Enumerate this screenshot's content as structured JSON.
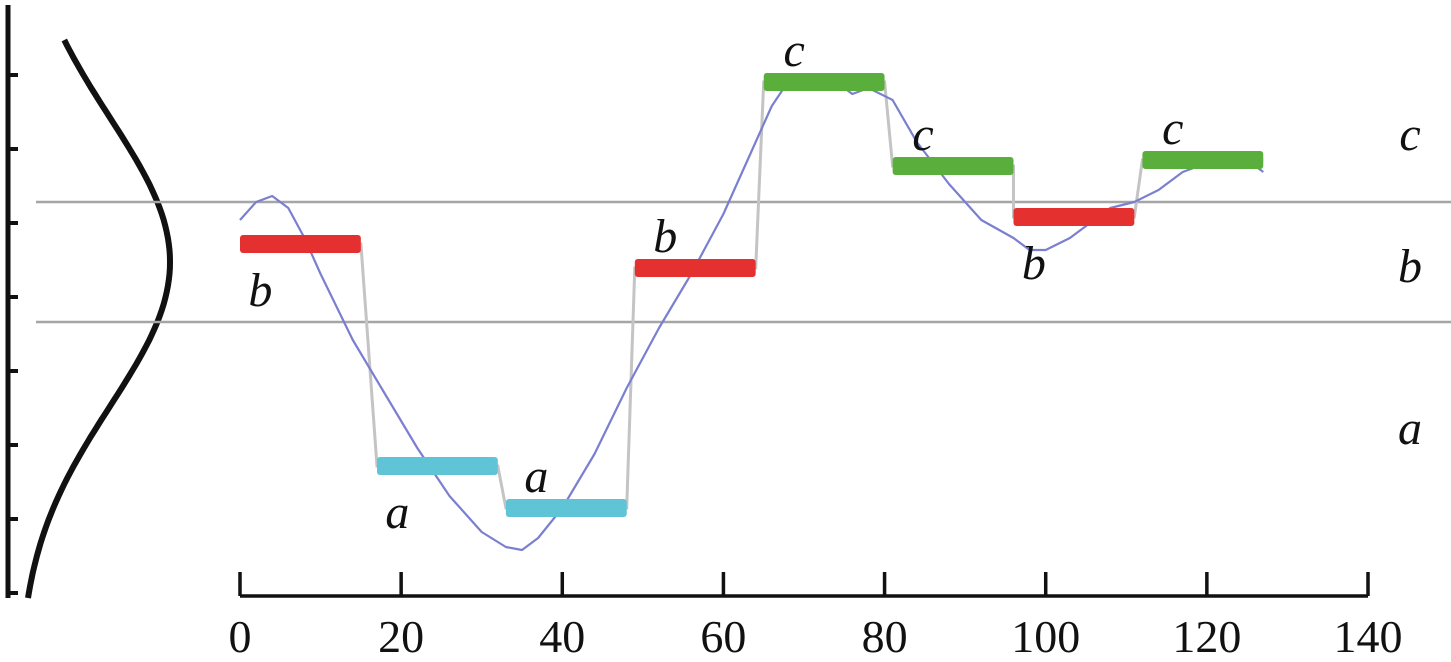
{
  "chart_data": {
    "type": "line",
    "title": "",
    "xlabel": "",
    "ylabel": "",
    "xlim": [
      0,
      140
    ],
    "x_ticks": [
      0,
      20,
      40,
      60,
      80,
      100,
      120,
      140
    ],
    "ylim": [
      0,
      10
    ],
    "grid": false,
    "thresholds": [
      5.3,
      7.3
    ],
    "band_labels": [
      {
        "text": "c",
        "y": 8.4
      },
      {
        "text": "b",
        "y": 6.2
      },
      {
        "text": "a",
        "y": 3.5
      }
    ],
    "segments": [
      {
        "symbol": "b",
        "x_start": 0,
        "x_end": 15,
        "level": 6.6,
        "color": "#e53030",
        "label_position": "below"
      },
      {
        "symbol": "a",
        "x_start": 17,
        "x_end": 32,
        "level": 2.9,
        "color": "#5fc4d6",
        "label_position": "below"
      },
      {
        "symbol": "a",
        "x_start": 33,
        "x_end": 48,
        "level": 2.2,
        "color": "#5fc4d6",
        "label_position": "above"
      },
      {
        "symbol": "b",
        "x_start": 49,
        "x_end": 64,
        "level": 6.2,
        "color": "#e53030",
        "label_position": "above"
      },
      {
        "symbol": "c",
        "x_start": 65,
        "x_end": 80,
        "level": 9.3,
        "color": "#5aaf3c",
        "label_position": "above"
      },
      {
        "symbol": "c",
        "x_start": 81,
        "x_end": 96,
        "level": 7.9,
        "color": "#5aaf3c",
        "label_position": "above"
      },
      {
        "symbol": "b",
        "x_start": 96,
        "x_end": 111,
        "level": 7.05,
        "color": "#e53030",
        "label_position": "below"
      },
      {
        "symbol": "c",
        "x_start": 112,
        "x_end": 127,
        "level": 8.0,
        "color": "#5aaf3c",
        "label_position": "above"
      }
    ],
    "series": [
      {
        "color": "#7a7fd0",
        "x": [
          0,
          2,
          4,
          6,
          8,
          10,
          14,
          18,
          22,
          26,
          30,
          33,
          35,
          37,
          40,
          44,
          48,
          52,
          56,
          60,
          63,
          66,
          68,
          71,
          74,
          76,
          78,
          81,
          84,
          88,
          92,
          96,
          98,
          100,
          103,
          106,
          108,
          111,
          114,
          117,
          121,
          125,
          127
        ],
        "y": [
          7.0,
          7.3,
          7.4,
          7.2,
          6.7,
          6.1,
          5.0,
          4.1,
          3.2,
          2.4,
          1.8,
          1.55,
          1.5,
          1.7,
          2.2,
          3.1,
          4.2,
          5.2,
          6.1,
          7.1,
          8.0,
          8.9,
          9.3,
          9.4,
          9.3,
          9.1,
          9.2,
          9.0,
          8.3,
          7.6,
          7.0,
          6.7,
          6.5,
          6.5,
          6.7,
          7.0,
          7.2,
          7.3,
          7.5,
          7.8,
          8.0,
          8.0,
          7.8
        ]
      }
    ],
    "distribution": {
      "type": "gaussian-profile",
      "peak_y": 6.3,
      "spread": 2.4
    }
  }
}
